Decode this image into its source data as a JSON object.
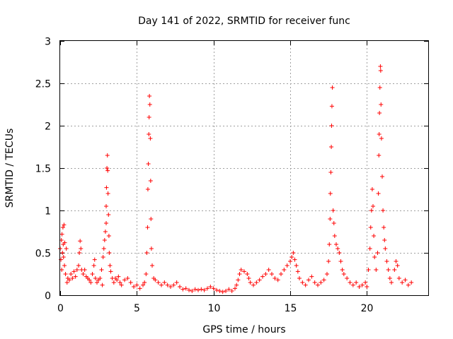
{
  "chart_data": {
    "type": "scatter",
    "title": "Day 141 of 2022, SRMTID for receiver func",
    "xlabel": "GPS time / hours",
    "ylabel": "SRMTID / TECUs",
    "xlim": [
      0,
      24
    ],
    "ylim": [
      0,
      3
    ],
    "xticks": [
      0,
      5,
      10,
      15,
      20
    ],
    "xtick_labels": [
      "0",
      "5",
      "10",
      "15",
      "20"
    ],
    "yticks": [
      0,
      0.5,
      1,
      1.5,
      2,
      2.5,
      3
    ],
    "ytick_labels": [
      "0",
      "0.5",
      "1",
      "1.5",
      "2",
      "2.5",
      "3"
    ],
    "grid": true,
    "marker": "+",
    "color": "#ff0000",
    "series": [
      {
        "name": "SRMTID",
        "points": [
          [
            0.0,
            0.55
          ],
          [
            0.05,
            0.42
          ],
          [
            0.08,
            0.65
          ],
          [
            0.1,
            0.3
          ],
          [
            0.12,
            0.72
          ],
          [
            0.15,
            0.5
          ],
          [
            0.18,
            0.8
          ],
          [
            0.2,
            0.6
          ],
          [
            0.22,
            0.45
          ],
          [
            0.25,
            0.83
          ],
          [
            0.28,
            0.35
          ],
          [
            0.3,
            0.62
          ],
          [
            0.35,
            0.25
          ],
          [
            0.4,
            0.55
          ],
          [
            0.45,
            0.15
          ],
          [
            0.5,
            0.2
          ],
          [
            0.6,
            0.18
          ],
          [
            0.7,
            0.25
          ],
          [
            0.8,
            0.2
          ],
          [
            0.9,
            0.28
          ],
          [
            1.0,
            0.22
          ],
          [
            1.1,
            0.3
          ],
          [
            1.2,
            0.35
          ],
          [
            1.25,
            0.5
          ],
          [
            1.3,
            0.64
          ],
          [
            1.35,
            0.55
          ],
          [
            1.4,
            0.3
          ],
          [
            1.5,
            0.25
          ],
          [
            1.6,
            0.3
          ],
          [
            1.7,
            0.22
          ],
          [
            1.8,
            0.2
          ],
          [
            1.9,
            0.18
          ],
          [
            2.0,
            0.15
          ],
          [
            2.1,
            0.25
          ],
          [
            2.2,
            0.35
          ],
          [
            2.25,
            0.42
          ],
          [
            2.3,
            0.2
          ],
          [
            2.4,
            0.15
          ],
          [
            2.5,
            0.18
          ],
          [
            2.6,
            0.2
          ],
          [
            2.7,
            0.3
          ],
          [
            2.75,
            0.12
          ],
          [
            2.8,
            0.45
          ],
          [
            2.85,
            0.55
          ],
          [
            2.9,
            0.65
          ],
          [
            2.95,
            0.75
          ],
          [
            3.0,
            0.85
          ],
          [
            3.0,
            1.05
          ],
          [
            3.02,
            1.27
          ],
          [
            3.05,
            1.5
          ],
          [
            3.08,
            1.65
          ],
          [
            3.1,
            1.47
          ],
          [
            3.12,
            1.2
          ],
          [
            3.15,
            0.95
          ],
          [
            3.18,
            0.7
          ],
          [
            3.2,
            0.5
          ],
          [
            3.25,
            0.35
          ],
          [
            3.3,
            0.28
          ],
          [
            3.4,
            0.2
          ],
          [
            3.5,
            0.15
          ],
          [
            3.6,
            0.2
          ],
          [
            3.7,
            0.18
          ],
          [
            3.8,
            0.22
          ],
          [
            3.9,
            0.15
          ],
          [
            4.0,
            0.12
          ],
          [
            4.2,
            0.18
          ],
          [
            4.4,
            0.2
          ],
          [
            4.6,
            0.15
          ],
          [
            4.8,
            0.1
          ],
          [
            5.0,
            0.12
          ],
          [
            5.2,
            0.08
          ],
          [
            5.4,
            0.12
          ],
          [
            5.5,
            0.15
          ],
          [
            5.6,
            0.25
          ],
          [
            5.65,
            0.5
          ],
          [
            5.7,
            0.8
          ],
          [
            5.72,
            1.25
          ],
          [
            5.75,
            1.55
          ],
          [
            5.78,
            1.9
          ],
          [
            5.8,
            2.1
          ],
          [
            5.82,
            2.35
          ],
          [
            5.85,
            2.25
          ],
          [
            5.88,
            1.85
          ],
          [
            5.9,
            1.35
          ],
          [
            5.92,
            0.9
          ],
          [
            5.95,
            0.55
          ],
          [
            6.0,
            0.35
          ],
          [
            6.1,
            0.2
          ],
          [
            6.2,
            0.18
          ],
          [
            6.4,
            0.15
          ],
          [
            6.6,
            0.12
          ],
          [
            6.8,
            0.15
          ],
          [
            7.0,
            0.12
          ],
          [
            7.2,
            0.1
          ],
          [
            7.4,
            0.12
          ],
          [
            7.6,
            0.15
          ],
          [
            7.8,
            0.1
          ],
          [
            8.0,
            0.07
          ],
          [
            8.2,
            0.08
          ],
          [
            8.4,
            0.06
          ],
          [
            8.6,
            0.05
          ],
          [
            8.8,
            0.07
          ],
          [
            9.0,
            0.06
          ],
          [
            9.2,
            0.07
          ],
          [
            9.4,
            0.06
          ],
          [
            9.6,
            0.08
          ],
          [
            9.8,
            0.1
          ],
          [
            10.0,
            0.08
          ],
          [
            10.2,
            0.06
          ],
          [
            10.4,
            0.05
          ],
          [
            10.6,
            0.04
          ],
          [
            10.8,
            0.05
          ],
          [
            11.0,
            0.07
          ],
          [
            11.2,
            0.05
          ],
          [
            11.4,
            0.08
          ],
          [
            11.5,
            0.12
          ],
          [
            11.6,
            0.18
          ],
          [
            11.7,
            0.25
          ],
          [
            11.8,
            0.3
          ],
          [
            12.0,
            0.28
          ],
          [
            12.2,
            0.25
          ],
          [
            12.3,
            0.2
          ],
          [
            12.4,
            0.15
          ],
          [
            12.6,
            0.12
          ],
          [
            12.8,
            0.15
          ],
          [
            13.0,
            0.18
          ],
          [
            13.2,
            0.22
          ],
          [
            13.4,
            0.25
          ],
          [
            13.6,
            0.3
          ],
          [
            13.8,
            0.25
          ],
          [
            14.0,
            0.2
          ],
          [
            14.2,
            0.18
          ],
          [
            14.4,
            0.25
          ],
          [
            14.6,
            0.3
          ],
          [
            14.8,
            0.35
          ],
          [
            15.0,
            0.4
          ],
          [
            15.1,
            0.45
          ],
          [
            15.2,
            0.5
          ],
          [
            15.3,
            0.42
          ],
          [
            15.4,
            0.35
          ],
          [
            15.5,
            0.28
          ],
          [
            15.6,
            0.2
          ],
          [
            15.8,
            0.15
          ],
          [
            16.0,
            0.12
          ],
          [
            16.2,
            0.18
          ],
          [
            16.4,
            0.22
          ],
          [
            16.6,
            0.15
          ],
          [
            16.8,
            0.12
          ],
          [
            17.0,
            0.15
          ],
          [
            17.2,
            0.18
          ],
          [
            17.4,
            0.25
          ],
          [
            17.5,
            0.4
          ],
          [
            17.55,
            0.6
          ],
          [
            17.6,
            0.9
          ],
          [
            17.62,
            1.2
          ],
          [
            17.65,
            1.45
          ],
          [
            17.68,
            1.75
          ],
          [
            17.7,
            2.0
          ],
          [
            17.72,
            2.23
          ],
          [
            17.75,
            2.45
          ],
          [
            17.8,
            1.0
          ],
          [
            17.85,
            0.85
          ],
          [
            17.9,
            0.7
          ],
          [
            18.0,
            0.6
          ],
          [
            18.1,
            0.55
          ],
          [
            18.2,
            0.5
          ],
          [
            18.3,
            0.4
          ],
          [
            18.4,
            0.3
          ],
          [
            18.5,
            0.25
          ],
          [
            18.7,
            0.2
          ],
          [
            18.9,
            0.15
          ],
          [
            19.1,
            0.12
          ],
          [
            19.3,
            0.15
          ],
          [
            19.5,
            0.1
          ],
          [
            19.7,
            0.12
          ],
          [
            19.9,
            0.15
          ],
          [
            20.0,
            0.1
          ],
          [
            20.1,
            0.3
          ],
          [
            20.2,
            0.55
          ],
          [
            20.25,
            0.8
          ],
          [
            20.3,
            1.0
          ],
          [
            20.35,
            1.25
          ],
          [
            20.4,
            1.05
          ],
          [
            20.45,
            0.7
          ],
          [
            20.5,
            0.45
          ],
          [
            20.6,
            0.3
          ],
          [
            20.7,
            0.5
          ],
          [
            20.75,
            1.2
          ],
          [
            20.78,
            1.65
          ],
          [
            20.8,
            1.9
          ],
          [
            20.82,
            2.15
          ],
          [
            20.85,
            2.45
          ],
          [
            20.88,
            2.7
          ],
          [
            20.9,
            2.65
          ],
          [
            20.92,
            2.25
          ],
          [
            20.95,
            1.85
          ],
          [
            21.0,
            1.4
          ],
          [
            21.05,
            1.0
          ],
          [
            21.1,
            0.8
          ],
          [
            21.15,
            0.65
          ],
          [
            21.2,
            0.55
          ],
          [
            21.3,
            0.4
          ],
          [
            21.4,
            0.3
          ],
          [
            21.5,
            0.2
          ],
          [
            21.6,
            0.15
          ],
          [
            21.8,
            0.3
          ],
          [
            21.9,
            0.4
          ],
          [
            22.0,
            0.35
          ],
          [
            22.1,
            0.2
          ],
          [
            22.3,
            0.15
          ],
          [
            22.5,
            0.18
          ],
          [
            22.7,
            0.12
          ],
          [
            22.9,
            0.15
          ]
        ]
      }
    ]
  }
}
